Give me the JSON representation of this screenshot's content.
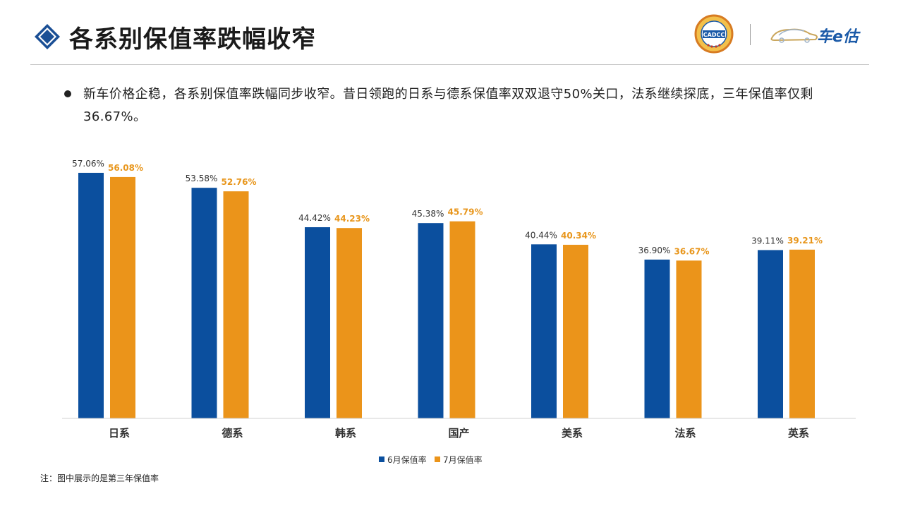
{
  "header": {
    "title": "各系别保值率跌幅收窄",
    "logo_left_text": "CADCC",
    "logo_right_text": "车e估"
  },
  "summary": {
    "text": "新车价格企稳，各系别保值率跌幅同步收窄。昔日领跑的日系与德系保值率双双退守50%关口，法系继续探底，三年保值率仅剩36.67%。"
  },
  "note": "注：图中展示的是第三年保值率",
  "colors": {
    "june": "#0b4f9e",
    "july": "#eb941a"
  },
  "chart_data": {
    "type": "bar",
    "categories": [
      "日系",
      "德系",
      "韩系",
      "国产",
      "美系",
      "法系",
      "英系"
    ],
    "series": [
      {
        "name": "6月保值率",
        "values": [
          57.06,
          53.58,
          44.42,
          45.38,
          40.44,
          36.9,
          39.11
        ],
        "labels": [
          "57.06%",
          "53.58%",
          "44.42%",
          "45.38%",
          "40.44%",
          "36.90%",
          "39.11%"
        ]
      },
      {
        "name": "7月保值率",
        "values": [
          56.08,
          52.76,
          44.23,
          45.79,
          40.34,
          36.67,
          39.21
        ],
        "labels": [
          "56.08%",
          "52.76%",
          "44.23%",
          "45.79%",
          "40.34%",
          "36.67%",
          "39.21%"
        ]
      }
    ],
    "ylim": [
      0,
      60
    ],
    "grid": false,
    "legend_position": "bottom"
  }
}
